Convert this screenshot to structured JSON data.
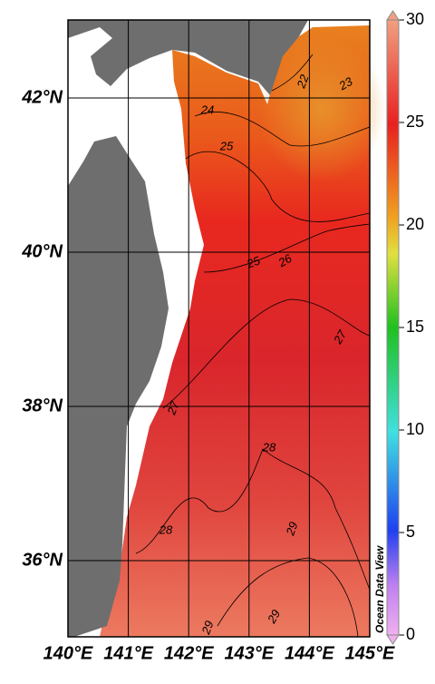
{
  "map": {
    "y_axis": {
      "ticks": [
        {
          "value": 36,
          "label": "36°N"
        },
        {
          "value": 38,
          "label": "38°N"
        },
        {
          "value": 40,
          "label": "40°N"
        },
        {
          "value": 42,
          "label": "42°N"
        }
      ]
    },
    "x_axis": {
      "ticks": [
        {
          "value": 140,
          "label": "140°E"
        },
        {
          "value": 141,
          "label": "141°E"
        },
        {
          "value": 142,
          "label": "142°E"
        },
        {
          "value": 143,
          "label": "143°E"
        },
        {
          "value": 144,
          "label": "144°E"
        },
        {
          "value": 145,
          "label": "145°E"
        }
      ]
    },
    "contour_labels": [
      22,
      23,
      24,
      25,
      25,
      26,
      27,
      27,
      28,
      28,
      29,
      29,
      29
    ],
    "watermark": "Ocean Data View"
  },
  "colorbar": {
    "lim": [
      0,
      30
    ],
    "ticks": [
      0,
      5,
      10,
      15,
      20,
      25,
      30
    ]
  }
}
